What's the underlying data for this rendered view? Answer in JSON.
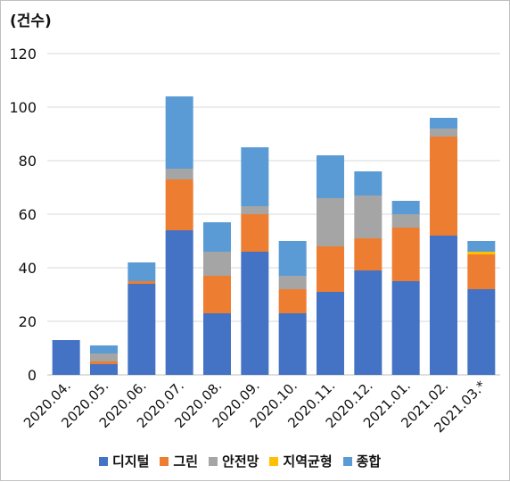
{
  "unit_label": "(건수)",
  "chart_data": {
    "type": "bar",
    "stacked": true,
    "categories": [
      "2020.04.",
      "2020.05.",
      "2020.06.",
      "2020.07.",
      "2020.08.",
      "2020.09.",
      "2020.10.",
      "2020.11.",
      "2020.12.",
      "2021.01.",
      "2021.02.",
      "2021.03.*"
    ],
    "series": [
      {
        "name": "디지털",
        "color": "#4472c4",
        "values": [
          13,
          4,
          34,
          54,
          23,
          46,
          23,
          31,
          39,
          35,
          52,
          32
        ]
      },
      {
        "name": "그린",
        "color": "#ed7d31",
        "values": [
          0,
          1,
          1,
          19,
          14,
          14,
          9,
          17,
          12,
          20,
          37,
          13
        ]
      },
      {
        "name": "안전망",
        "color": "#a5a5a5",
        "values": [
          0,
          3,
          0,
          4,
          9,
          3,
          5,
          18,
          16,
          5,
          3,
          0
        ]
      },
      {
        "name": "지역균형",
        "color": "#ffc000",
        "values": [
          0,
          0,
          0,
          0,
          0,
          0,
          0,
          0,
          0,
          0,
          0,
          1
        ]
      },
      {
        "name": "종합",
        "color": "#5b9bd5",
        "values": [
          0,
          3,
          7,
          27,
          11,
          22,
          13,
          16,
          9,
          5,
          4,
          4
        ]
      }
    ],
    "ylim": [
      0,
      120
    ],
    "yticks": [
      0,
      20,
      40,
      60,
      80,
      100,
      120
    ],
    "grid": true,
    "legend_position": "bottom"
  }
}
